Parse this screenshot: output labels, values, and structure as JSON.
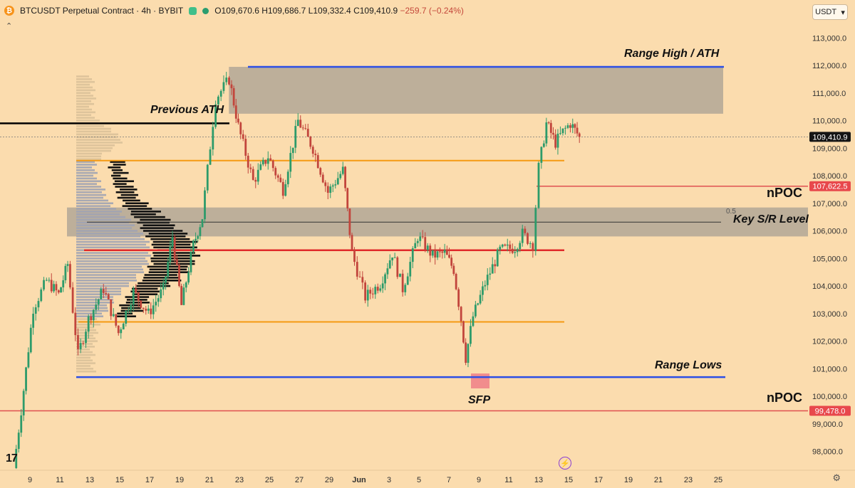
{
  "header": {
    "symbol": "BTCUSDT Perpetual Contract · 4h · BYBIT",
    "open": "O109,670.6",
    "high": "H109,686.7",
    "low": "L109,332.4",
    "close": "C109,410.9",
    "change": "−259.7 (−0.24%)",
    "currency_button": "USDT",
    "collapse_icon": "chevron-up-icon",
    "settings_icon": "gear-icon",
    "replay_icon": "lightning-icon",
    "logo_text": "TV"
  },
  "colors": {
    "background": "#fbdcae",
    "bull": "#2d9b6a",
    "bear": "#c2453c",
    "range_line": "#2b4ee6",
    "orange_line": "#f59a12",
    "red_line": "#e02a2a",
    "npoc_line": "#e05050",
    "black_line": "#000000",
    "zone": "#8f8f8f"
  },
  "chart_data": {
    "type": "candlestick",
    "title": "BTCUSDT Perpetual Contract · 4h · BYBIT",
    "y_axis_ticks": [
      "113,000.0",
      "112,000.0",
      "111,000.0",
      "110,000.0",
      "109,000.0",
      "108,000.0",
      "107,000.0",
      "106,000.0",
      "105,000.0",
      "104,000.0",
      "103,000.0",
      "102,000.0",
      "101,000.0",
      "100,000.0",
      "99,000.0",
      "98,000.0"
    ],
    "y_tick_values": [
      113000,
      112000,
      111000,
      110000,
      109000,
      108000,
      107000,
      106000,
      105000,
      104000,
      103000,
      102000,
      101000,
      100000,
      99000,
      98000
    ],
    "ylim": [
      97400,
      113600
    ],
    "x_axis_ticks": [
      "9",
      "11",
      "13",
      "15",
      "17",
      "19",
      "21",
      "23",
      "25",
      "27",
      "29",
      "Jun",
      "3",
      "5",
      "7",
      "9",
      "11",
      "13",
      "15",
      "17",
      "19",
      "21",
      "23",
      "25"
    ],
    "price_labels": [
      {
        "text": "109,410.9",
        "value": 109410.9,
        "style": "dark"
      },
      {
        "text": "107,622.5",
        "value": 107622.5,
        "style": "red"
      },
      {
        "text": "99,478.0",
        "value": 99478.0,
        "style": "red"
      }
    ],
    "levels": [
      {
        "name": "Range High / ATH",
        "value": 111950,
        "kind": "range"
      },
      {
        "name": "Previous ATH",
        "value": 109900,
        "kind": "black"
      },
      {
        "name": "orange-upper",
        "value": 108550,
        "kind": "orange"
      },
      {
        "name": "Key S/R Level",
        "value": 106320,
        "kind": "grey"
      },
      {
        "name": "red-mid",
        "value": 105300,
        "kind": "red"
      },
      {
        "name": "orange-lower",
        "value": 102700,
        "kind": "orange"
      },
      {
        "name": "Range Lows",
        "value": 100700,
        "kind": "range"
      },
      {
        "name": "nPOC",
        "value": 107622.5,
        "kind": "npoc"
      },
      {
        "name": "nPOC",
        "value": 99478.0,
        "kind": "npoc"
      }
    ],
    "zones": [
      {
        "name": "ath-zone",
        "from": 110250,
        "to": 111950
      },
      {
        "name": "key-sr-zone",
        "from": 105800,
        "to": 106850
      }
    ],
    "annotations": [
      "Range High / ATH",
      "Previous ATH",
      "nPOC",
      "Key S/R Level",
      "Range Lows",
      "SFP",
      "nPOC",
      "0.5"
    ],
    "key_points": [
      {
        "x": 8.0,
        "y": 97400
      },
      {
        "x": 8.5,
        "y": 99500
      },
      {
        "x": 9.3,
        "y": 103200
      },
      {
        "x": 10.2,
        "y": 104200
      },
      {
        "x": 11.0,
        "y": 103700
      },
      {
        "x": 11.6,
        "y": 104800
      },
      {
        "x": 12.3,
        "y": 101500
      },
      {
        "x": 13.0,
        "y": 102800
      },
      {
        "x": 14.0,
        "y": 103900
      },
      {
        "x": 15.0,
        "y": 102300
      },
      {
        "x": 16.0,
        "y": 103800
      },
      {
        "x": 17.0,
        "y": 103000
      },
      {
        "x": 18.0,
        "y": 103900
      },
      {
        "x": 18.6,
        "y": 105800
      },
      {
        "x": 19.2,
        "y": 103300
      },
      {
        "x": 20.0,
        "y": 105500
      },
      {
        "x": 20.6,
        "y": 106500
      },
      {
        "x": 21.5,
        "y": 110800
      },
      {
        "x": 22.4,
        "y": 111500
      },
      {
        "x": 23.0,
        "y": 109800
      },
      {
        "x": 24.0,
        "y": 107800
      },
      {
        "x": 25.0,
        "y": 108700
      },
      {
        "x": 26.0,
        "y": 107500
      },
      {
        "x": 27.0,
        "y": 110000
      },
      {
        "x": 28.0,
        "y": 109000
      },
      {
        "x": 29.0,
        "y": 107400
      },
      {
        "x": 30.0,
        "y": 108200
      },
      {
        "x": 30.6,
        "y": 105200
      },
      {
        "x": 31.5,
        "y": 103600
      },
      {
        "x": 32.5,
        "y": 104100
      },
      {
        "x": 33.3,
        "y": 105200
      },
      {
        "x": 34.0,
        "y": 103900
      },
      {
        "x": 35.0,
        "y": 105800
      },
      {
        "x": 36.0,
        "y": 105100
      },
      {
        "x": 36.8,
        "y": 105200
      },
      {
        "x": 37.4,
        "y": 104600
      },
      {
        "x": 37.9,
        "y": 102800
      },
      {
        "x": 38.2,
        "y": 101400
      },
      {
        "x": 38.7,
        "y": 102900
      },
      {
        "x": 39.5,
        "y": 104100
      },
      {
        "x": 40.5,
        "y": 105300
      },
      {
        "x": 41.5,
        "y": 105400
      },
      {
        "x": 42.0,
        "y": 105900
      },
      {
        "x": 42.7,
        "y": 105500
      },
      {
        "x": 43.1,
        "y": 108300
      },
      {
        "x": 43.6,
        "y": 109900
      },
      {
        "x": 44.2,
        "y": 109200
      },
      {
        "x": 44.7,
        "y": 109600
      },
      {
        "x": 45.2,
        "y": 109900
      },
      {
        "x": 45.8,
        "y": 109410.9
      }
    ],
    "grid": false,
    "legend": "none"
  }
}
